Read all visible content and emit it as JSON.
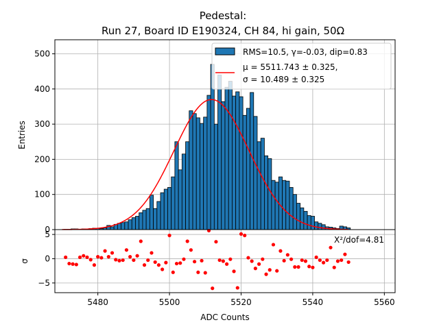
{
  "title_line1": "Pedestal:",
  "title_line2": "Run 27, Board ID E190324, CH 84, hi gain, 50Ω",
  "xlabel": "ADC Counts",
  "ylabel_top": "Entries",
  "ylabel_bottom": "σ",
  "legend": {
    "hist_label": "RMS=10.5, γ=-0.03, dip=0.83",
    "fit_line1": "μ = 5511.743 ± 0.325,",
    "fit_line2": "σ = 10.489 ± 0.325"
  },
  "chi2_label": "X²/dof=4.81",
  "colors": {
    "bar": "#1f77b4",
    "fit": "#ff0000",
    "residual": "#ff0000",
    "grid": "#b0b0b0"
  },
  "chart_data": [
    {
      "type": "bar",
      "title": "Pedestal:\nRun 27, Board ID E190324, CH 84, hi gain, 50Ω",
      "ylabel": "Entries",
      "xlim": [
        5468,
        5563
      ],
      "ylim": [
        0,
        540
      ],
      "xticks": [
        5480,
        5500,
        5520,
        5540,
        5560
      ],
      "yticks": [
        0,
        100,
        200,
        300,
        400,
        500
      ],
      "grid": true,
      "legend_position": "top-right",
      "bin_width": 1,
      "bins_start": 5471,
      "counts": [
        1,
        1,
        2,
        2,
        1,
        2,
        2,
        3,
        4,
        4,
        3,
        5,
        12,
        8,
        15,
        18,
        20,
        22,
        28,
        34,
        38,
        48,
        55,
        60,
        98,
        60,
        80,
        105,
        115,
        120,
        150,
        250,
        170,
        215,
        250,
        338,
        330,
        318,
        302,
        320,
        382,
        470,
        300,
        440,
        364,
        405,
        422,
        380,
        392,
        378,
        325,
        345,
        390,
        322,
        250,
        260,
        210,
        202,
        140,
        135,
        150,
        140,
        138,
        120,
        100,
        75,
        62,
        52,
        40,
        38,
        22,
        18,
        14,
        8,
        7,
        5,
        3,
        10,
        8,
        5
      ],
      "fit": {
        "label": "μ = 5511.743 ± 0.325, σ = 10.489 ± 0.325",
        "mu": 5511.743,
        "sigma": 10.489,
        "amplitude": 370,
        "x_range": [
          5470,
          5550
        ]
      }
    },
    {
      "type": "scatter",
      "ylabel": "σ",
      "xlabel": "ADC Counts",
      "xlim": [
        5468,
        5563
      ],
      "ylim": [
        -7,
        6
      ],
      "yticks": [
        -5,
        0,
        5
      ],
      "grid": true,
      "x": [
        5471,
        5472,
        5473,
        5474,
        5475,
        5476,
        5477,
        5478,
        5479,
        5480,
        5481,
        5482,
        5483,
        5484,
        5485,
        5486,
        5487,
        5488,
        5489,
        5490,
        5491,
        5492,
        5493,
        5494,
        5495,
        5496,
        5497,
        5498,
        5499,
        5500,
        5501,
        5502,
        5503,
        5504,
        5505,
        5506,
        5507,
        5508,
        5509,
        5510,
        5511,
        5512,
        5513,
        5514,
        5515,
        5516,
        5517,
        5518,
        5519,
        5520,
        5521,
        5522,
        5523,
        5524,
        5525,
        5526,
        5527,
        5528,
        5529,
        5530,
        5531,
        5532,
        5533,
        5534,
        5535,
        5536,
        5537,
        5538,
        5539,
        5540,
        5541,
        5542,
        5543,
        5544,
        5545,
        5546,
        5547,
        5548,
        5549,
        5550
      ],
      "values": [
        0.3,
        -1.0,
        -1.1,
        -1.2,
        0.3,
        0.6,
        0.3,
        -0.2,
        -1.3,
        0.4,
        0.2,
        1.6,
        0.4,
        1.2,
        -0.2,
        -0.4,
        -0.3,
        1.8,
        0.4,
        -0.3,
        0.6,
        3.6,
        -1.3,
        -0.3,
        1.2,
        -0.7,
        -1.3,
        -2.2,
        -0.8,
        4.8,
        -2.8,
        -1.0,
        -0.9,
        -0.1,
        3.6,
        1.8,
        -0.6,
        -2.8,
        -0.4,
        -2.9,
        5.8,
        -6.1,
        3.5,
        -0.3,
        -0.5,
        -1.1,
        -0.1,
        -2.6,
        -6.0,
        5.1,
        4.8,
        0.2,
        -0.5,
        -2.0,
        -1.1,
        -0.1,
        -3.2,
        -2.3,
        2.9,
        -2.5,
        1.6,
        -0.4,
        0.8,
        -0.1,
        -1.7,
        -1.7,
        -0.3,
        -0.5,
        -1.6,
        -1.8,
        0.3,
        -0.3,
        -0.8,
        -0.3,
        2.3,
        -1.8,
        -0.5,
        -0.3,
        0.9,
        -0.7
      ]
    }
  ]
}
